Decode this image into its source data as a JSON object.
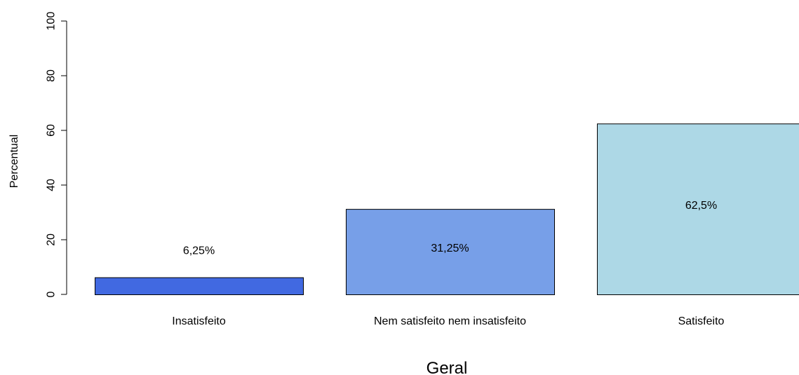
{
  "chart_data": {
    "type": "bar",
    "categories": [
      "Insatisfeito",
      "Nem satisfeito nem insatisfeito",
      "Satisfeito"
    ],
    "values": [
      6.25,
      31.25,
      62.5
    ],
    "value_labels": [
      "6,25%",
      "31,25%",
      "62,5%"
    ],
    "colors": [
      "#4169e1",
      "#779fe8",
      "#add8e6"
    ],
    "xlabel": "Geral",
    "ylabel": "Percentual",
    "ylim": [
      0,
      100
    ],
    "yticks": [
      0,
      20,
      40,
      60,
      80,
      100
    ],
    "grid": false,
    "legend": "none"
  }
}
